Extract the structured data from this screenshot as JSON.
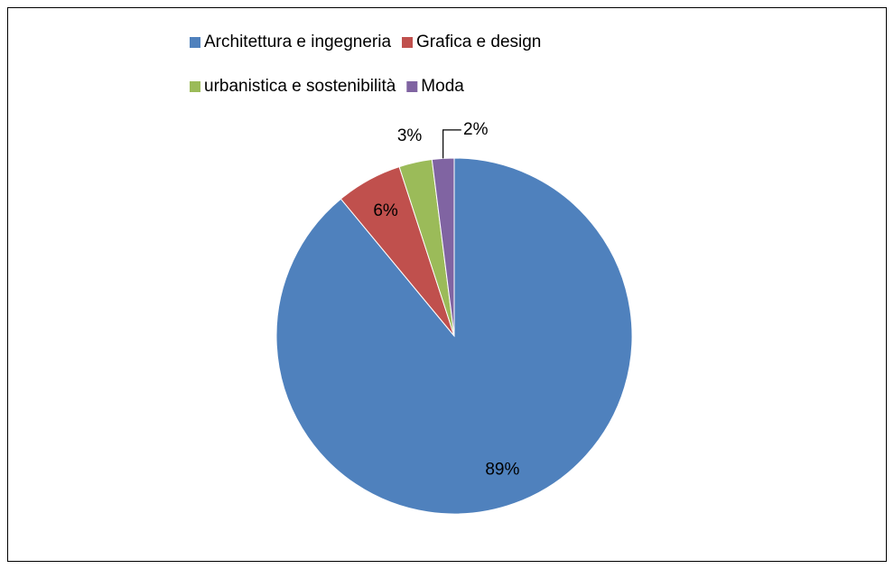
{
  "chart_data": {
    "type": "pie",
    "categories": [
      "Architettura e ingegneria",
      "Grafica e design",
      "urbanistica e sostenibilità",
      "Moda"
    ],
    "values": [
      89,
      6,
      3,
      2
    ],
    "value_labels": [
      "89%",
      "6%",
      "3%",
      "2%"
    ],
    "colors": [
      "#4f81bd",
      "#c0504d",
      "#9bbb59",
      "#8064a2"
    ],
    "legend": "top"
  }
}
